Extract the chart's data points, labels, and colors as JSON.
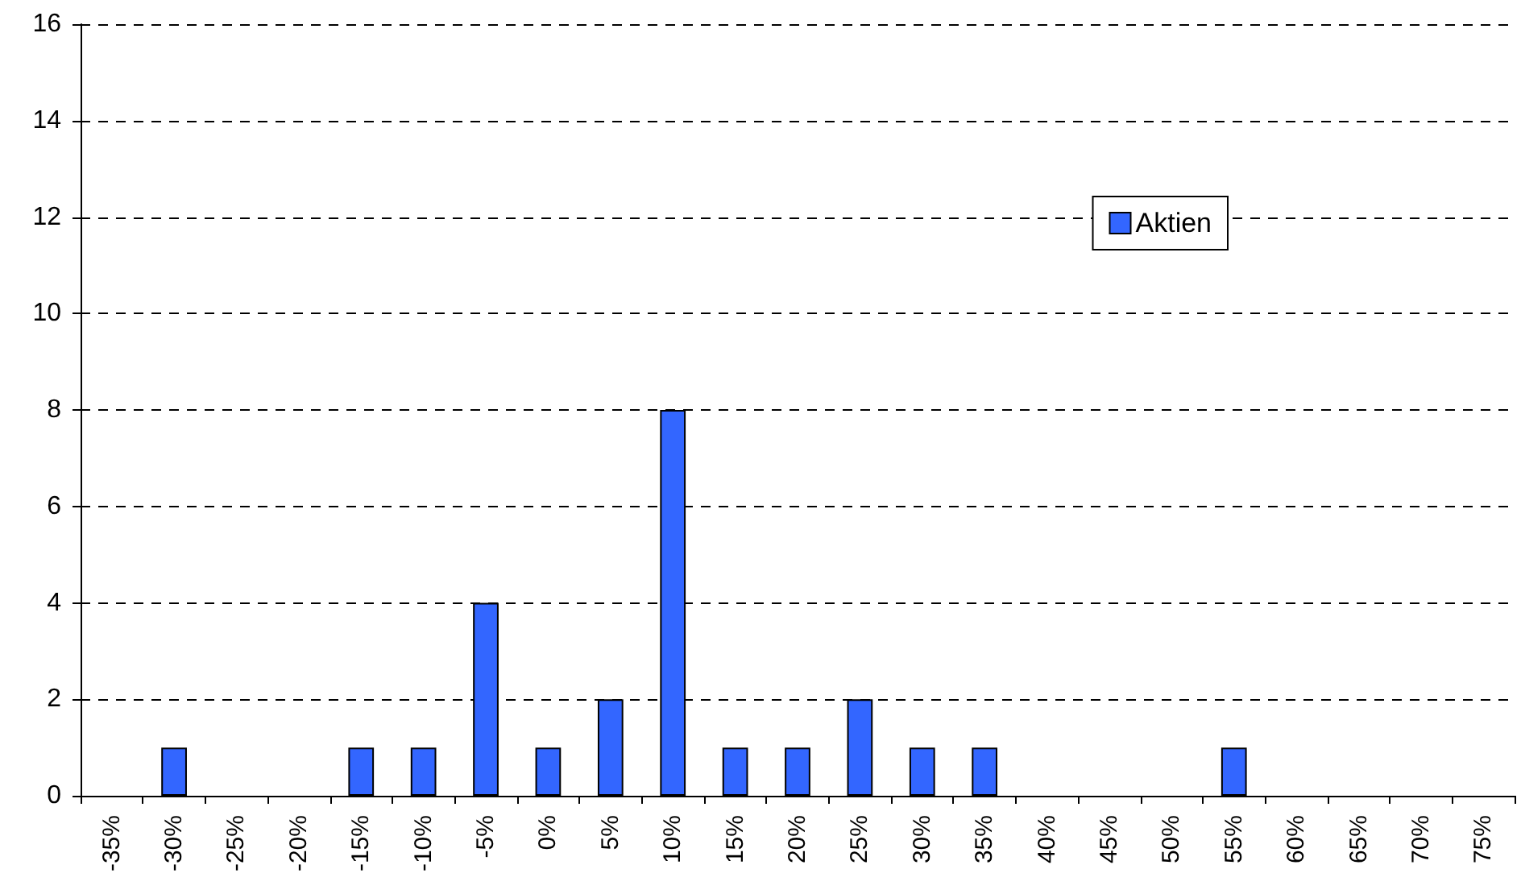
{
  "chart_data": {
    "type": "bar",
    "categories": [
      "-35%",
      "-30%",
      "-25%",
      "-20%",
      "-15%",
      "-10%",
      "-5%",
      "0%",
      "5%",
      "10%",
      "15%",
      "20%",
      "25%",
      "30%",
      "35%",
      "40%",
      "45%",
      "50%",
      "55%",
      "60%",
      "65%",
      "70%",
      "75%"
    ],
    "series": [
      {
        "name": "Aktien",
        "color": "#3366ff",
        "values": [
          0,
          1,
          0,
          0,
          1,
          1,
          4,
          1,
          2,
          8,
          1,
          1,
          2,
          1,
          1,
          0,
          0,
          0,
          1,
          0,
          0,
          0,
          0
        ]
      }
    ],
    "ylim": [
      0,
      16
    ],
    "yticks": [
      0,
      2,
      4,
      6,
      8,
      10,
      12,
      14,
      16
    ],
    "grid": "y",
    "legend": "top right"
  }
}
